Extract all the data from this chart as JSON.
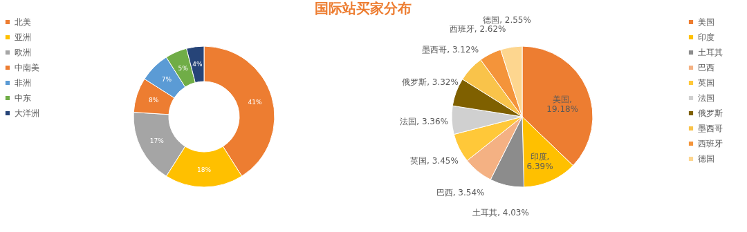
{
  "chart_data": [
    {
      "type": "donut",
      "title": "国际站买家分布",
      "legend": "left",
      "categories": [
        "北美",
        "亚洲",
        "欧洲",
        "中南美",
        "非洲",
        "中东",
        "大洋洲"
      ],
      "values": [
        41,
        18,
        17,
        8,
        7,
        5,
        4
      ],
      "value_labels": [
        "41%",
        "18%",
        "17%",
        "8%",
        "7%",
        "5%",
        "4%"
      ],
      "colors": [
        "#ed7d31",
        "#ffc000",
        "#a5a5a5",
        "#ed7d31",
        "#5b9bd5",
        "#70ad47",
        "#264478"
      ]
    },
    {
      "type": "pie",
      "legend": "right",
      "categories": [
        "美国",
        "印度",
        "土耳其",
        "巴西",
        "英国",
        "法国",
        "俄罗斯",
        "墨西哥",
        "西班牙",
        "德国"
      ],
      "values": [
        19.18,
        6.39,
        4.03,
        3.54,
        3.45,
        3.36,
        3.32,
        3.12,
        2.62,
        2.55
      ],
      "value_labels": [
        "美国, 19.18%",
        "印度, 6.39%",
        "土耳其, 4.03%",
        "巴西, 3.54%",
        "英国, 3.45%",
        "法国, 3.36%",
        "俄罗斯, 3.32%",
        "墨西哥, 3.12%",
        "西班牙, 2.62%",
        "德国, 2.55%"
      ],
      "colors": [
        "#ed7d31",
        "#ffc000",
        "#8c8c8c",
        "#f4b183",
        "#ffc839",
        "#d0d0d0",
        "#7f6000",
        "#f9c34a",
        "#f4943a",
        "#fdd68f"
      ]
    }
  ]
}
